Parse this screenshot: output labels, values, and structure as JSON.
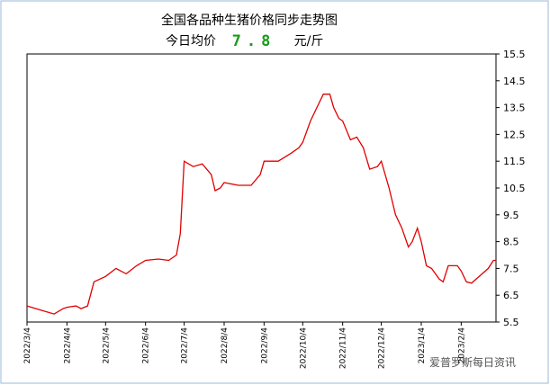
{
  "chart_data": {
    "type": "line",
    "title": "全国各品种生猪价格同步走势图",
    "subtitle_prefix": "今日均价",
    "subtitle_value": "7.8",
    "subtitle_unit": "元/斤",
    "watermark": "爱普罗斯每日资讯",
    "xlim": [
      "2022/3/4",
      "2023/3/3"
    ],
    "xticks": [
      "2022/3/4",
      "2022/4/4",
      "2022/5/4",
      "2022/6/4",
      "2022/7/4",
      "2022/8/4",
      "2022/9/4",
      "2022/10/4",
      "2022/11/4",
      "2022/12/4",
      "2023/1/4",
      "2023/2/4"
    ],
    "ylim": [
      5.5,
      15.5
    ],
    "yticks": [
      5.5,
      6.5,
      7.5,
      8.5,
      9.5,
      10.5,
      11.5,
      12.5,
      13.5,
      14.5,
      15.5
    ],
    "grid": false,
    "series": [
      {
        "color": "#e00000",
        "x": [
          "2022/3/4",
          "2022/3/11",
          "2022/3/18",
          "2022/3/25",
          "2022/4/1",
          "2022/4/4",
          "2022/4/11",
          "2022/4/15",
          "2022/4/20",
          "2022/4/25",
          "2022/5/4",
          "2022/5/12",
          "2022/5/20",
          "2022/5/28",
          "2022/6/4",
          "2022/6/14",
          "2022/6/22",
          "2022/6/28",
          "2022/7/1",
          "2022/7/4",
          "2022/7/11",
          "2022/7/18",
          "2022/7/25",
          "2022/7/28",
          "2022/8/1",
          "2022/8/4",
          "2022/8/15",
          "2022/8/25",
          "2022/9/1",
          "2022/9/4",
          "2022/9/15",
          "2022/9/25",
          "2022/10/1",
          "2022/10/4",
          "2022/10/10",
          "2022/10/15",
          "2022/10/20",
          "2022/10/25",
          "2022/10/28",
          "2022/11/1",
          "2022/11/4",
          "2022/11/10",
          "2022/11/15",
          "2022/11/20",
          "2022/11/25",
          "2022/12/1",
          "2022/12/4",
          "2022/12/10",
          "2022/12/15",
          "2022/12/20",
          "2022/12/25",
          "2022/12/28",
          "2023/1/1",
          "2023/1/4",
          "2023/1/8",
          "2023/1/12",
          "2023/1/18",
          "2023/1/21",
          "2023/1/25",
          "2023/2/1",
          "2023/2/4",
          "2023/2/8",
          "2023/2/12",
          "2023/2/18",
          "2023/2/25",
          "2023/3/1",
          "2023/3/3"
        ],
        "values": [
          6.1,
          6.0,
          5.9,
          5.8,
          6.0,
          6.05,
          6.1,
          6.0,
          6.1,
          7.0,
          7.2,
          7.5,
          7.3,
          7.6,
          7.8,
          7.85,
          7.8,
          8.0,
          8.8,
          11.5,
          11.3,
          11.4,
          11.0,
          10.4,
          10.5,
          10.7,
          10.6,
          10.6,
          11.0,
          11.5,
          11.5,
          11.8,
          12.0,
          12.2,
          13.0,
          13.5,
          14.0,
          14.0,
          13.5,
          13.1,
          13.0,
          12.3,
          12.4,
          12.0,
          11.2,
          11.3,
          11.5,
          10.5,
          9.5,
          9.0,
          8.3,
          8.5,
          9.0,
          8.5,
          7.6,
          7.5,
          7.1,
          7.0,
          7.6,
          7.6,
          7.4,
          7.0,
          6.95,
          7.2,
          7.5,
          7.8,
          7.8
        ]
      }
    ]
  }
}
